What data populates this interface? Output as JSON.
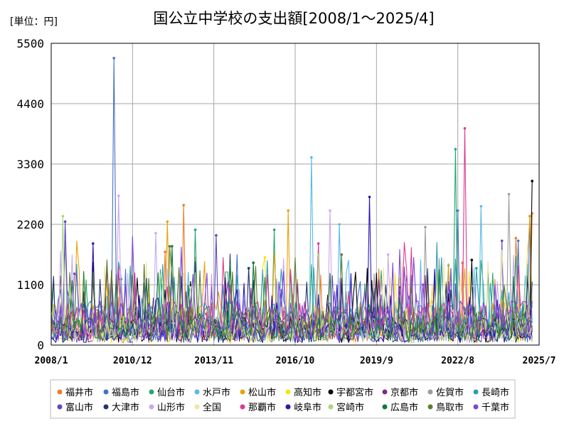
{
  "chart_data": {
    "type": "line",
    "title": "国公立中学校の支出額[2008/1〜2025/4]",
    "unit": "[単位：円]",
    "ylim": [
      0,
      5500
    ],
    "yticks": [
      "0",
      "1100",
      "2200",
      "3300",
      "4400",
      "5500"
    ],
    "ytick_values": [
      0,
      1100,
      2200,
      3300,
      4400,
      5500
    ],
    "xlim_index": [
      0,
      210
    ],
    "xticks": [
      "2008/1",
      "2010/12",
      "2013/11",
      "2016/10",
      "2019/9",
      "2022/8",
      "2025/7"
    ],
    "xtick_index": [
      0,
      35,
      70,
      105,
      140,
      175,
      210
    ],
    "n_points": 208,
    "grid": true,
    "legend_position": "bottom",
    "series": [
      {
        "name": "福井市",
        "color": "#ED7D31",
        "peaks": [
          [
            49,
            1700
          ],
          [
            57,
            2550
          ],
          [
            177,
            1500
          ],
          [
            200,
            1950
          ],
          [
            207,
            2400
          ]
        ]
      },
      {
        "name": "福島市",
        "color": "#4472C4",
        "peaks": [
          [
            27,
            5230
          ],
          [
            175,
            2450
          ],
          [
            201,
            1900
          ],
          [
            206,
            2350
          ]
        ]
      },
      {
        "name": "仙台市",
        "color": "#23A86F",
        "peaks": [
          [
            62,
            2100
          ],
          [
            96,
            2100
          ],
          [
            174,
            3570
          ]
        ]
      },
      {
        "name": "水戸市",
        "color": "#5BB9E6",
        "peaks": [
          [
            112,
            3420
          ],
          [
            124,
            2200
          ],
          [
            185,
            2530
          ],
          [
            171,
            1450
          ]
        ]
      },
      {
        "name": "松山市",
        "color": "#E8A20A",
        "peaks": [
          [
            50,
            2250
          ],
          [
            102,
            2450
          ],
          [
            206,
            2350
          ]
        ]
      },
      {
        "name": "高知市",
        "color": "#F5E31A",
        "peaks": [
          [
            92,
            1600
          ],
          [
            150,
            1200
          ]
        ]
      },
      {
        "name": "宇都宮市",
        "color": "#000000",
        "peaks": [
          [
            181,
            1550
          ],
          [
            205,
            1250
          ],
          [
            207,
            2990
          ]
        ]
      },
      {
        "name": "京都市",
        "color": "#7D2A8E",
        "peaks": [
          [
            30,
            1200
          ],
          [
            150,
            1050
          ]
        ]
      },
      {
        "name": "佐賀市",
        "color": "#9C9C9C",
        "peaks": [
          [
            161,
            2150
          ],
          [
            197,
            2750
          ]
        ]
      },
      {
        "name": "長崎市",
        "color": "#2E9CB5",
        "peaks": [
          [
            183,
            1400
          ],
          [
            205,
            1450
          ]
        ]
      },
      {
        "name": "富山市",
        "color": "#5E47C2",
        "peaks": [
          [
            6,
            2250
          ],
          [
            71,
            2000
          ],
          [
            194,
            1900
          ]
        ]
      },
      {
        "name": "大津市",
        "color": "#24336B",
        "peaks": [
          [
            18,
            1200
          ],
          [
            85,
            1400
          ]
        ]
      },
      {
        "name": "山形市",
        "color": "#CBA8F2",
        "peaks": [
          [
            29,
            2720
          ],
          [
            45,
            2040
          ],
          [
            120,
            2450
          ],
          [
            145,
            1650
          ]
        ]
      },
      {
        "name": "全国",
        "color": "#EDE6A8",
        "peaks": [
          [
            60,
            1050
          ],
          [
            120,
            1100
          ]
        ]
      },
      {
        "name": "那覇市",
        "color": "#DB3A95",
        "peaks": [
          [
            178,
            3950
          ],
          [
            115,
            1850
          ]
        ]
      },
      {
        "name": "岐阜市",
        "color": "#2A15B5",
        "peaks": [
          [
            18,
            1850
          ],
          [
            137,
            2700
          ]
        ]
      },
      {
        "name": "宮崎市",
        "color": "#A8D67E",
        "peaks": [
          [
            5,
            2350
          ],
          [
            115,
            1650
          ]
        ]
      },
      {
        "name": "広島市",
        "color": "#0E7A3A",
        "peaks": [
          [
            52,
            1800
          ],
          [
            87,
            1500
          ]
        ]
      },
      {
        "name": "鳥取市",
        "color": "#5B7F2E",
        "peaks": [
          [
            51,
            1800
          ],
          [
            125,
            1650
          ]
        ]
      },
      {
        "name": "千葉市",
        "color": "#7B45E0",
        "peaks": [
          [
            10,
            1300
          ],
          [
            160,
            1100
          ]
        ]
      }
    ]
  }
}
